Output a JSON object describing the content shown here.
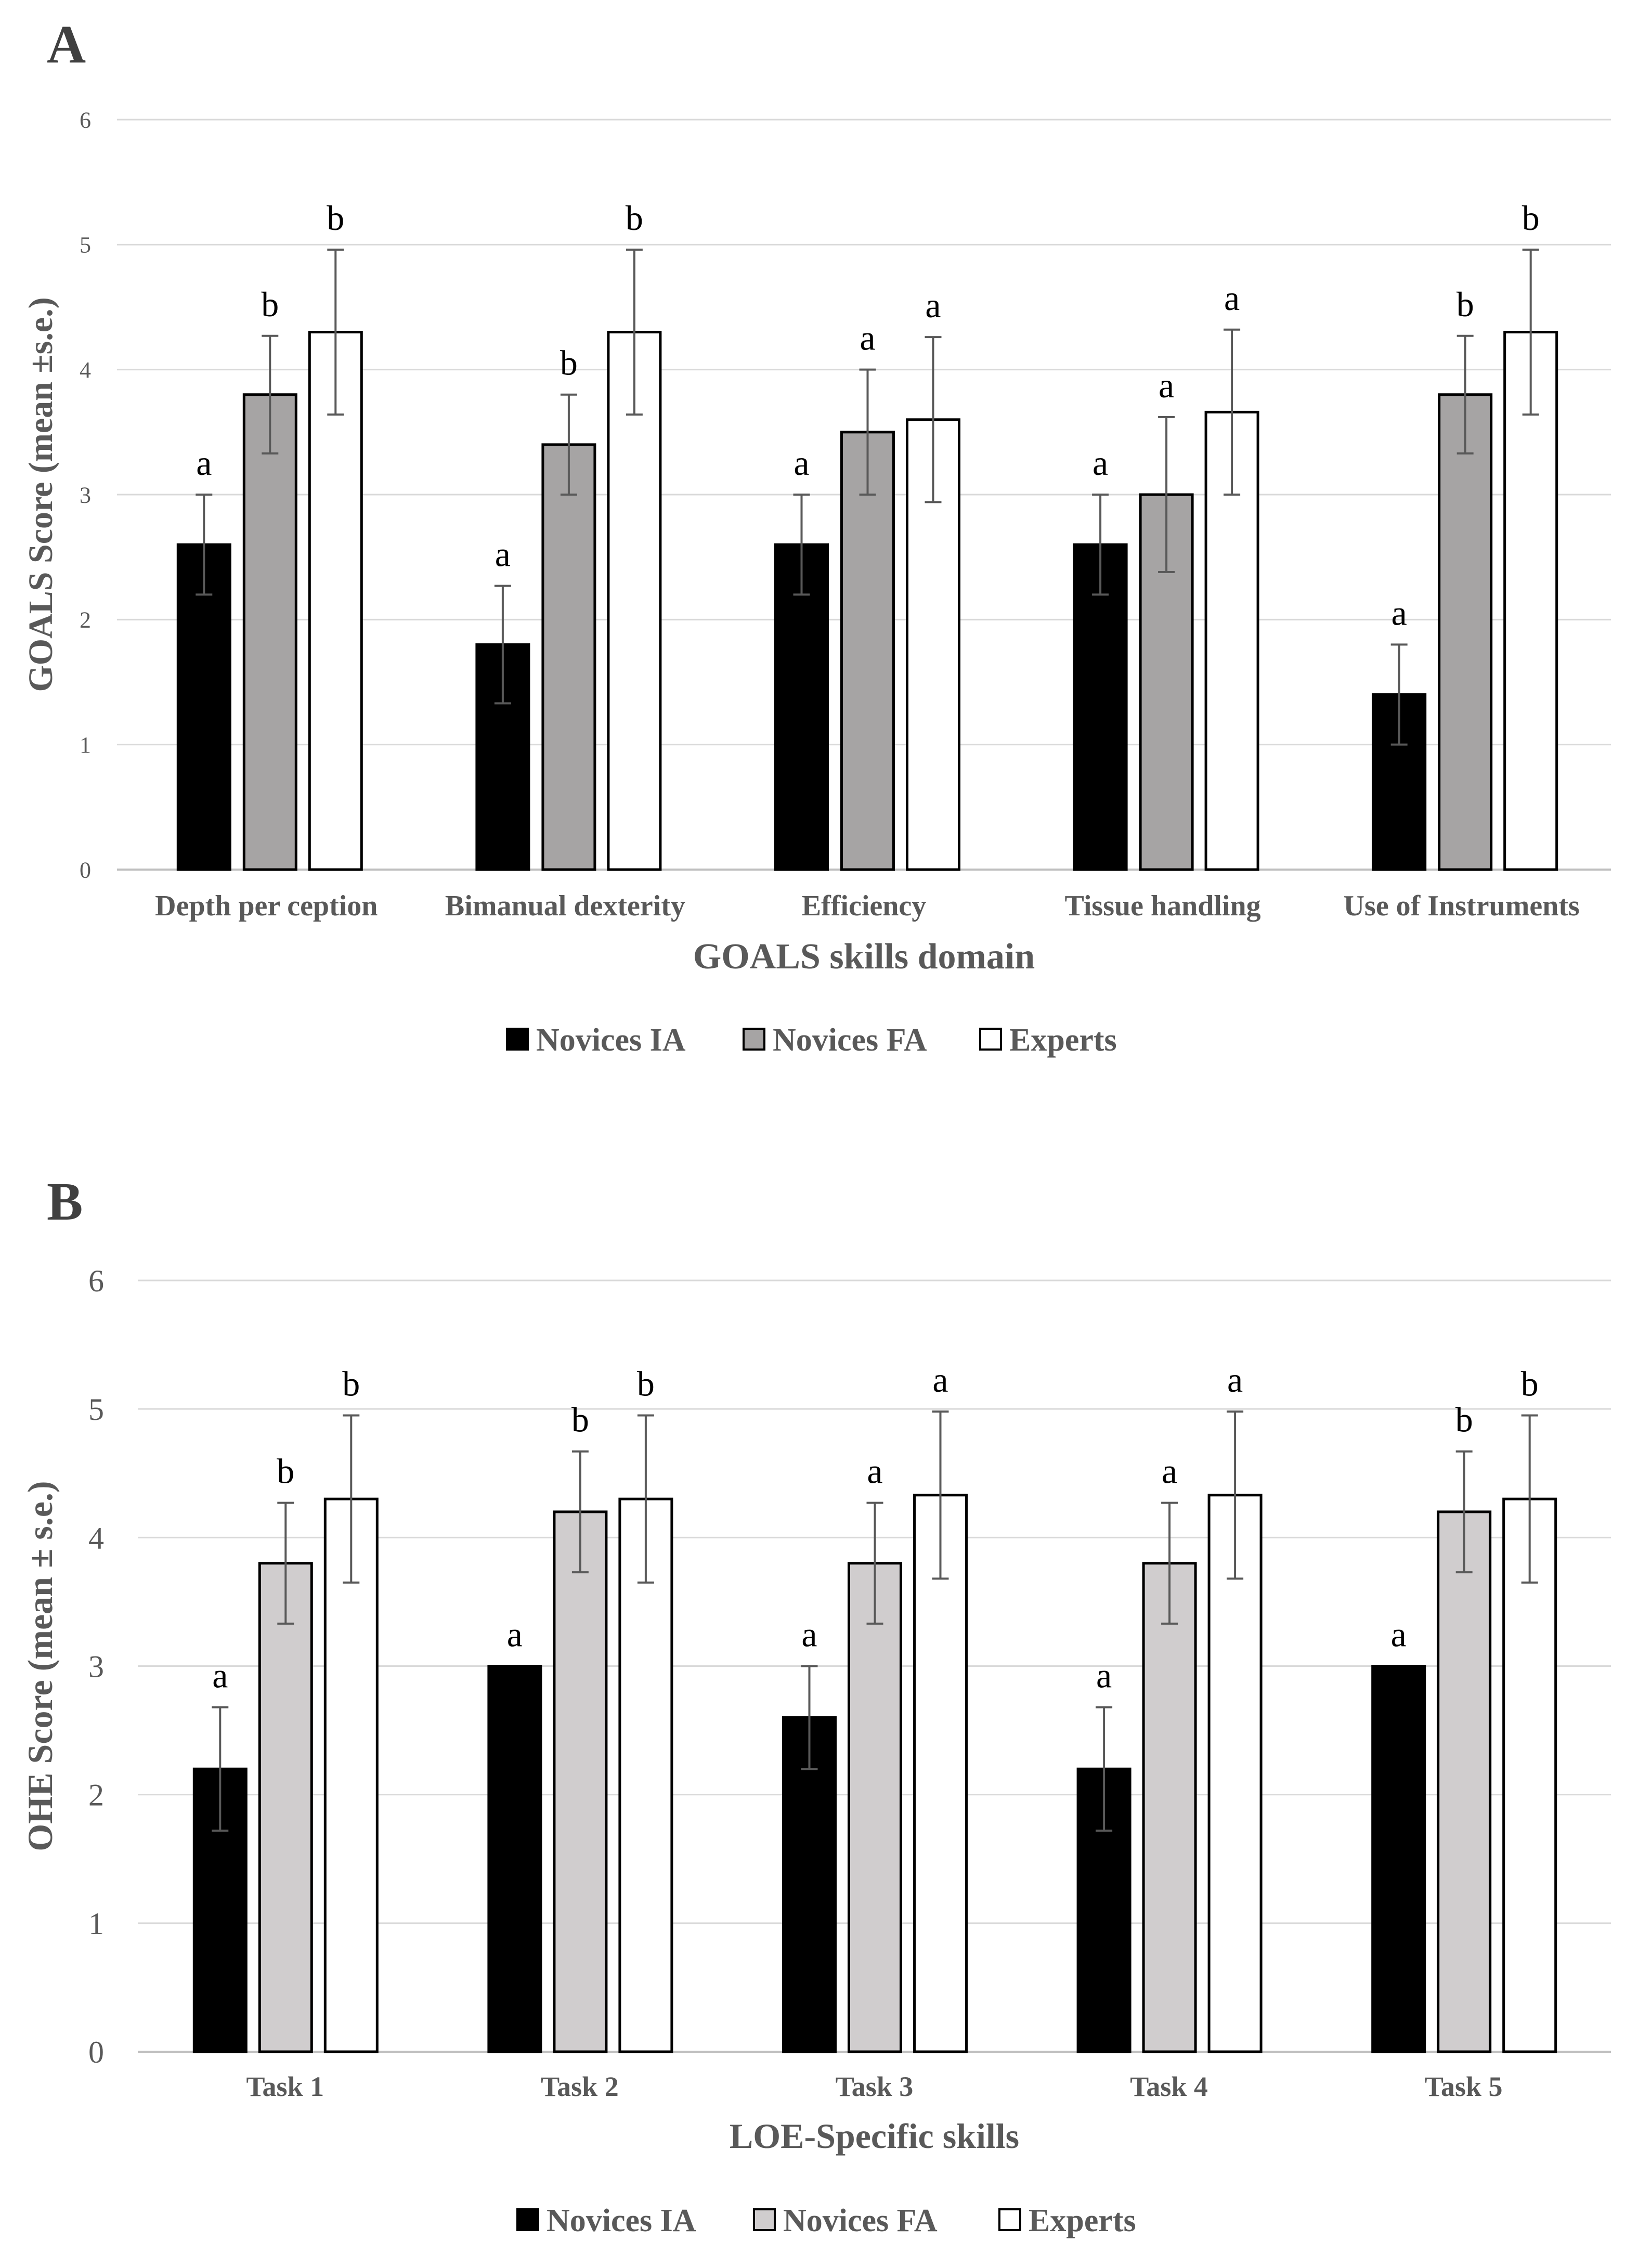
{
  "chart_data": [
    {
      "panel": "A",
      "type": "bar",
      "title": "",
      "xlabel": "GOALS skills domain",
      "ylabel": "GOALS Score (mean ±s.e.)",
      "ylim": [
        0,
        6
      ],
      "yticks": [
        "0",
        "1",
        "2",
        "3",
        "4",
        "5",
        "6"
      ],
      "categories": [
        "Depth per ception",
        "Bimanual dexterity",
        "Efficiency",
        "Tissue handling",
        "Use of Instruments"
      ],
      "series": [
        {
          "name": "Novices IA",
          "color": "#000000",
          "values": [
            2.6,
            1.8,
            2.6,
            2.6,
            1.4
          ],
          "errors": [
            0.4,
            0.47,
            0.4,
            0.4,
            0.4
          ],
          "letters": [
            "a",
            "a",
            "a",
            "a",
            "a"
          ]
        },
        {
          "name": "Novices FA",
          "color": "#a6a4a4",
          "values": [
            3.8,
            3.4,
            3.5,
            3.0,
            3.8
          ],
          "errors": [
            0.47,
            0.4,
            0.5,
            0.62,
            0.47
          ],
          "letters": [
            "b",
            "b",
            "a",
            "a",
            "b"
          ]
        },
        {
          "name": "Experts",
          "color": "#ffffff",
          "values": [
            4.3,
            4.3,
            3.6,
            3.66,
            4.3
          ],
          "errors": [
            0.66,
            0.66,
            0.66,
            0.66,
            0.66
          ],
          "letters": [
            "b",
            "b",
            "a",
            "a",
            "b"
          ]
        }
      ],
      "legend": "bottom"
    },
    {
      "panel": "B",
      "type": "bar",
      "title": "",
      "xlabel": "LOE-Specific skills",
      "ylabel": "OHE Score (mean ± s.e.)",
      "ylim": [
        0,
        6
      ],
      "yticks": [
        "0",
        "1",
        "2",
        "3",
        "4",
        "5",
        "6"
      ],
      "categories": [
        "Task 1",
        "Task 2",
        "Task 3",
        "Task 4",
        "Task 5"
      ],
      "series": [
        {
          "name": "Novices IA",
          "color": "#000000",
          "values": [
            2.2,
            3.0,
            2.6,
            2.2,
            3.0
          ],
          "errors": [
            0.48,
            0,
            0.4,
            0.48,
            0
          ],
          "letters": [
            "a",
            "a",
            "a",
            "a",
            "a"
          ]
        },
        {
          "name": "Novices FA",
          "color": "#d0cdce",
          "values": [
            3.8,
            4.2,
            3.8,
            3.8,
            4.2
          ],
          "errors": [
            0.47,
            0.47,
            0.47,
            0.47,
            0.47
          ],
          "letters": [
            "b",
            "b",
            "a",
            "a",
            "b"
          ]
        },
        {
          "name": "Experts",
          "color": "#ffffff",
          "values": [
            4.3,
            4.3,
            4.33,
            4.33,
            4.3
          ],
          "errors": [
            0.65,
            0.65,
            0.65,
            0.65,
            0.65
          ],
          "letters": [
            "b",
            "b",
            "a",
            "a",
            "b"
          ]
        }
      ],
      "legend": "bottom"
    }
  ]
}
